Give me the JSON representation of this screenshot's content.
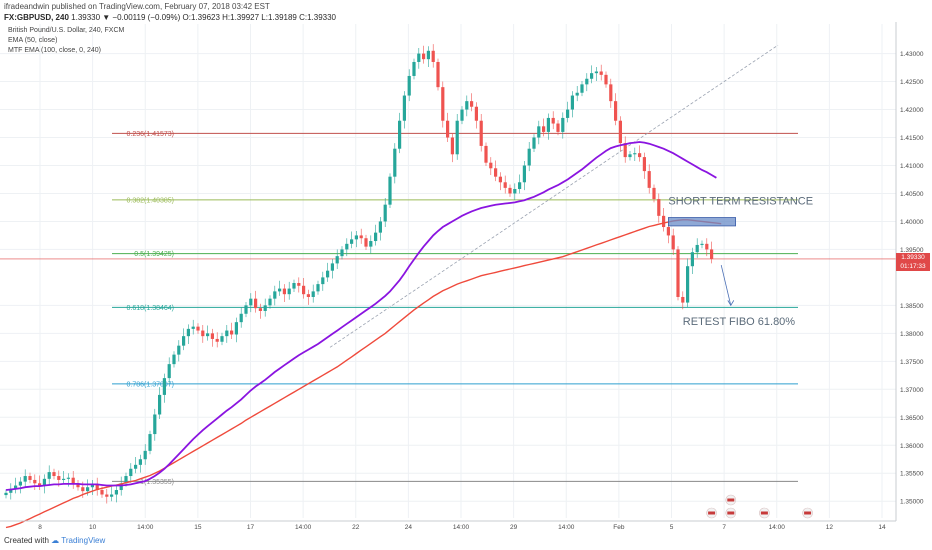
{
  "header": {
    "publisher_line": "ifradeandwin published on TradingView.com, February 07, 2018 03:42 EST",
    "symbol": "FX:GBPUSD, 240",
    "ohlc_text": "1.39330 ▼ −0.00119 (−0.09%) O:1.39623 H:1.39927 L:1.39189 C:1.39330",
    "title": "British Pound/U.S. Dollar, 240, FXCM",
    "indicators": [
      "EMA (50, close)",
      "MTF EMA (100, close, 0, 240)"
    ]
  },
  "footer": {
    "created_with": "Created with",
    "brand": "TradingView"
  },
  "price_tag": {
    "price": "1.39330",
    "countdown": "01:17:33"
  },
  "colors": {
    "up": "#26a69a",
    "down": "#ef5350",
    "ema50": "#8a14e0",
    "ema100": "#ef4a3c",
    "grid": "#eef1f4",
    "last_price": "#e04848",
    "resistance_box": "#6a8cc8"
  },
  "chart_data": {
    "type": "candlestick",
    "title": "British Pound/U.S. Dollar, 240, FXCM",
    "ylim": [
      1.347,
      1.4335
    ],
    "y_ticks": [
      "1.43000",
      "1.42500",
      "1.42000",
      "1.41500",
      "1.41000",
      "1.40500",
      "1.40000",
      "1.39500",
      "1.38500",
      "1.38000",
      "1.37500",
      "1.37000",
      "1.36500",
      "1.36000",
      "1.35500",
      "1.35000"
    ],
    "x_ticks": [
      "8",
      "10",
      "14:00",
      "15",
      "17",
      "14:00",
      "22",
      "24",
      "14:00",
      "29",
      "14:00",
      "Feb",
      "5",
      "7",
      "14:00",
      "12",
      "14"
    ],
    "fib_levels": [
      {
        "label": "0.236(1.41573)",
        "value": 1.41573,
        "color": "#c0504d"
      },
      {
        "label": "0.382(1.40385)",
        "value": 1.40385,
        "color": "#9bbb59"
      },
      {
        "label": "0.5(1.39425)",
        "value": 1.39425,
        "color": "#4caf50"
      },
      {
        "label": "0.618(1.38464)",
        "value": 1.38464,
        "color": "#26a69a"
      },
      {
        "label": "0.786(1.37097)",
        "value": 1.37097,
        "color": "#2e9fcf"
      },
      {
        "label": "1(1.35355)",
        "value": 1.35355,
        "color": "#888888"
      }
    ],
    "last_price": 1.3933,
    "annotations": [
      {
        "text": "SHORT TERM RESISTANCE"
      },
      {
        "text": "RETEST FIBO 61.80%"
      }
    ],
    "closes": [
      1.3515,
      1.3522,
      1.3528,
      1.3535,
      1.3545,
      1.3538,
      1.3532,
      1.3528,
      1.354,
      1.3552,
      1.3545,
      1.3538,
      1.354,
      1.3542,
      1.3532,
      1.3525,
      1.3518,
      1.3525,
      1.353,
      1.352,
      1.3512,
      1.3508,
      1.3512,
      1.352,
      1.3532,
      1.3545,
      1.3558,
      1.3565,
      1.3575,
      1.359,
      1.362,
      1.3655,
      1.369,
      1.372,
      1.3745,
      1.3762,
      1.3778,
      1.3795,
      1.3808,
      1.3812,
      1.3805,
      1.3795,
      1.38,
      1.379,
      1.3785,
      1.3795,
      1.3805,
      1.3798,
      1.382,
      1.3835,
      1.385,
      1.3862,
      1.3845,
      1.384,
      1.385,
      1.3862,
      1.3875,
      1.388,
      1.387,
      1.388,
      1.389,
      1.3885,
      1.387,
      1.3865,
      1.3875,
      1.3888,
      1.39,
      1.3912,
      1.3925,
      1.3938,
      1.395,
      1.396,
      1.3968,
      1.3975,
      1.397,
      1.3955,
      1.3965,
      1.398,
      1.4,
      1.403,
      1.408,
      1.413,
      1.418,
      1.4225,
      1.426,
      1.4285,
      1.43,
      1.429,
      1.4305,
      1.4285,
      1.424,
      1.418,
      1.415,
      1.412,
      1.418,
      1.42,
      1.4215,
      1.4205,
      1.418,
      1.4135,
      1.4105,
      1.4095,
      1.408,
      1.407,
      1.406,
      1.405,
      1.4058,
      1.407,
      1.41,
      1.413,
      1.415,
      1.417,
      1.416,
      1.4185,
      1.4175,
      1.416,
      1.4185,
      1.42,
      1.4225,
      1.423,
      1.4245,
      1.4255,
      1.4265,
      1.4268,
      1.4262,
      1.4245,
      1.4215,
      1.418,
      1.414,
      1.4115,
      1.412,
      1.4122,
      1.4115,
      1.409,
      1.406,
      1.404,
      1.401,
      1.399,
      1.3975,
      1.395,
      1.3865,
      1.3855,
      1.392,
      1.3945,
      1.3958,
      1.396,
      1.395,
      1.3933
    ],
    "ema50": [
      1.352,
      1.3521,
      1.3522,
      1.3523,
      1.3525,
      1.3526,
      1.3527,
      1.3527,
      1.3528,
      1.3529,
      1.353,
      1.353,
      1.3531,
      1.3531,
      1.3531,
      1.3531,
      1.353,
      1.353,
      1.353,
      1.353,
      1.3529,
      1.3528,
      1.3528,
      1.3528,
      1.3528,
      1.3529,
      1.353,
      1.3532,
      1.3534,
      1.3536,
      1.354,
      1.3545,
      1.3551,
      1.3558,
      1.3566,
      1.3575,
      1.3584,
      1.3593,
      1.3602,
      1.3611,
      1.3619,
      1.3627,
      1.3634,
      1.3641,
      1.3648,
      1.3655,
      1.3662,
      1.3668,
      1.3675,
      1.3682,
      1.369,
      1.3698,
      1.3705,
      1.3711,
      1.3717,
      1.3724,
      1.3731,
      1.3737,
      1.3743,
      1.3749,
      1.3755,
      1.3761,
      1.3766,
      1.3771,
      1.3776,
      1.3781,
      1.3787,
      1.3793,
      1.3799,
      1.3805,
      1.3811,
      1.3817,
      1.3823,
      1.3829,
      1.3835,
      1.3841,
      1.3847,
      1.3853,
      1.386,
      1.3867,
      1.3875,
      1.3885,
      1.3895,
      1.3907,
      1.392,
      1.3932,
      1.3944,
      1.3955,
      1.3965,
      1.3975,
      1.3983,
      1.399,
      1.3995,
      1.4,
      1.4005,
      1.401,
      1.4014,
      1.4018,
      1.4021,
      1.4024,
      1.4026,
      1.4028,
      1.403,
      1.4031,
      1.4032,
      1.4033,
      1.4034,
      1.4036,
      1.4038,
      1.4041,
      1.4044,
      1.4048,
      1.4052,
      1.4057,
      1.4061,
      1.4065,
      1.407,
      1.4075,
      1.4081,
      1.4087,
      1.4093,
      1.41,
      1.4107,
      1.4114,
      1.412,
      1.4126,
      1.4131,
      1.4134,
      1.4136,
      1.4138,
      1.414,
      1.4141,
      1.4142,
      1.4141,
      1.4139,
      1.4136,
      1.4133,
      1.413,
      1.4126,
      1.4122,
      1.4117,
      1.4112,
      1.4107,
      1.4102,
      1.4097,
      1.4092,
      1.4088,
      1.4083,
      1.4078
    ],
    "ema100": [
      1.3453,
      1.3455,
      1.3458,
      1.3461,
      1.3465,
      1.3469,
      1.3473,
      1.3477,
      1.3481,
      1.3485,
      1.3489,
      1.3493,
      1.3497,
      1.3501,
      1.3505,
      1.3508,
      1.3512,
      1.3515,
      1.3518,
      1.3521,
      1.3523,
      1.3525,
      1.3527,
      1.3529,
      1.3531,
      1.3533,
      1.3535,
      1.3537,
      1.354,
      1.3543,
      1.3546,
      1.355,
      1.3554,
      1.3559,
      1.3564,
      1.3569,
      1.3574,
      1.3579,
      1.3584,
      1.3589,
      1.3594,
      1.3599,
      1.3604,
      1.3609,
      1.3614,
      1.3619,
      1.3624,
      1.3629,
      1.3634,
      1.3639,
      1.3645,
      1.365,
      1.3655,
      1.366,
      1.3665,
      1.367,
      1.3675,
      1.368,
      1.3685,
      1.369,
      1.3695,
      1.37,
      1.3705,
      1.371,
      1.3715,
      1.372,
      1.3725,
      1.373,
      1.3735,
      1.374,
      1.3746,
      1.3752,
      1.3758,
      1.3764,
      1.377,
      1.3776,
      1.3782,
      1.3788,
      1.3794,
      1.38,
      1.3807,
      1.3814,
      1.3821,
      1.3828,
      1.3835,
      1.3842,
      1.3848,
      1.3854,
      1.386,
      1.3866,
      1.3871,
      1.3876,
      1.388,
      1.3884,
      1.3888,
      1.3891,
      1.3894,
      1.3897,
      1.39,
      1.3903,
      1.3905,
      1.3907,
      1.3909,
      1.3911,
      1.3913,
      1.3915,
      1.3917,
      1.3919,
      1.3921,
      1.3923,
      1.3925,
      1.3927,
      1.3929,
      1.3931,
      1.3933,
      1.3935,
      1.3937,
      1.394,
      1.3943,
      1.3946,
      1.3949,
      1.3952,
      1.3955,
      1.3958,
      1.3961,
      1.3964,
      1.3967,
      1.397,
      1.3973,
      1.3976,
      1.3979,
      1.3982,
      1.3985,
      1.3988,
      1.3991,
      1.3993,
      1.3995,
      1.3997,
      1.3999,
      1.4001,
      1.4002,
      1.4003,
      1.4003,
      1.4002,
      1.4001,
      1.4,
      1.3999,
      1.3998,
      1.3997,
      1.3996
    ]
  }
}
